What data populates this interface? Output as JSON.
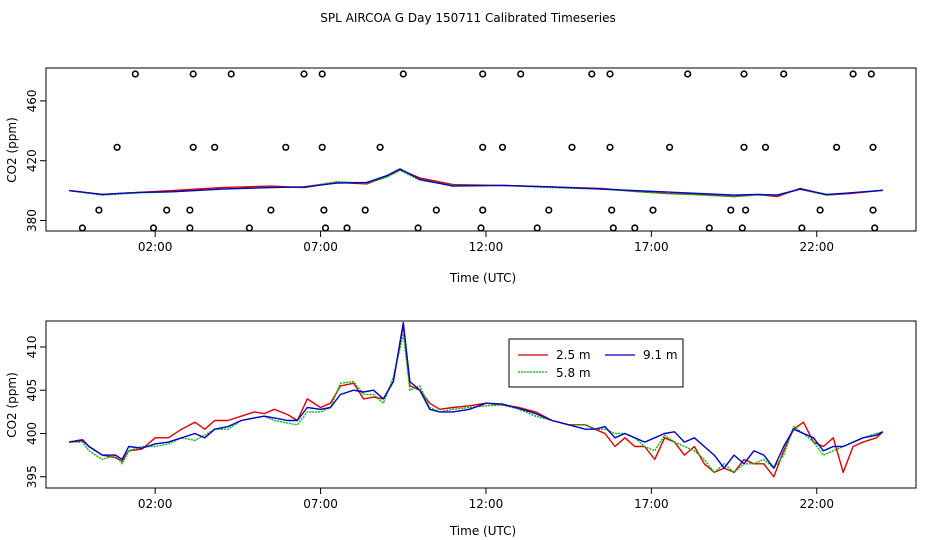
{
  "title": "SPL AIRCOA G  Day 150711  Calibrated Timeseries",
  "colors": {
    "s25": "#dd0000",
    "s58": "#00bb00",
    "s91": "#0000cc",
    "axis": "#000000"
  },
  "chart_data": [
    {
      "type": "line+scatter",
      "title": "SPL AIRCOA G  Day 150711  Calibrated Timeseries",
      "xlabel": "Time (UTC)",
      "ylabel": "CO2 (ppm)",
      "x_units": "hours (UTC)",
      "xlim": [
        -1.3,
        25.0
      ],
      "ylim": [
        373,
        482
      ],
      "x_ticks": [
        {
          "value": 2,
          "label": "02:00"
        },
        {
          "value": 7,
          "label": "07:00"
        },
        {
          "value": 12,
          "label": "12:00"
        },
        {
          "value": 17,
          "label": "17:00"
        },
        {
          "value": 22,
          "label": "22:00"
        }
      ],
      "y_ticks": [
        {
          "value": 380,
          "label": "380"
        },
        {
          "value": 420,
          "label": "420"
        },
        {
          "value": 460,
          "label": "460"
        }
      ],
      "marker_rows": [
        {
          "y": 478,
          "x": [
            1.4,
            3.15,
            4.3,
            6.5,
            7.05,
            9.5,
            11.9,
            13.05,
            15.2,
            15.75,
            18.1,
            19.8,
            21.0,
            23.1,
            23.65
          ]
        },
        {
          "y": 429,
          "x": [
            0.85,
            3.15,
            3.8,
            5.95,
            7.05,
            8.8,
            11.9,
            12.5,
            14.6,
            15.75,
            17.55,
            19.8,
            20.45,
            22.6,
            23.7
          ]
        },
        {
          "y": 387,
          "x": [
            0.3,
            2.35,
            3.05,
            5.5,
            7.1,
            8.35,
            10.5,
            11.9,
            13.9,
            15.8,
            17.05,
            19.4,
            19.85,
            22.1,
            23.7
          ]
        },
        {
          "y": 375,
          "x": [
            -0.2,
            1.95,
            3.05,
            4.85,
            7.15,
            7.8,
            9.95,
            11.85,
            13.55,
            15.85,
            16.5,
            18.75,
            19.75,
            21.55,
            23.75
          ]
        }
      ],
      "series": [
        {
          "name": "2.5 m",
          "x": [
            -0.6,
            0.4,
            1.5,
            2.5,
            4.0,
            5.5,
            6.5,
            7.5,
            8.4,
            9.0,
            9.4,
            10.0,
            11.0,
            12.5,
            14.0,
            15.5,
            16.5,
            17.5,
            18.5,
            19.5,
            20.2,
            20.8,
            21.5,
            22.3,
            23.0,
            24.0
          ],
          "values": [
            400.0,
            397.5,
            398.8,
            400.0,
            402.0,
            403.0,
            402.0,
            405.5,
            404.5,
            409.5,
            414.0,
            408.5,
            404.0,
            403.5,
            402.5,
            401.5,
            399.5,
            398.0,
            397.5,
            396.0,
            397.5,
            396.0,
            401.5,
            397.0,
            398.0,
            400.2
          ]
        },
        {
          "name": "5.8 m",
          "x": [
            -0.6,
            0.4,
            1.5,
            2.5,
            4.0,
            5.5,
            6.5,
            7.5,
            8.4,
            9.0,
            9.4,
            10.0,
            11.0,
            12.5,
            14.0,
            15.5,
            16.5,
            17.5,
            18.5,
            19.5,
            20.2,
            20.8,
            21.5,
            22.3,
            23.0,
            24.0
          ],
          "values": [
            400.0,
            397.0,
            398.5,
            399.2,
            401.0,
            402.2,
            402.5,
            406.0,
            405.0,
            409.0,
            413.5,
            407.0,
            403.5,
            403.5,
            402.0,
            401.0,
            399.5,
            398.0,
            397.0,
            396.0,
            397.0,
            397.0,
            400.8,
            397.0,
            398.5,
            400.2
          ]
        },
        {
          "name": "9.1 m",
          "x": [
            -0.6,
            0.4,
            1.5,
            2.5,
            4.0,
            5.5,
            6.5,
            7.5,
            8.4,
            9.0,
            9.4,
            10.0,
            11.0,
            12.5,
            14.0,
            15.5,
            16.5,
            17.5,
            18.5,
            19.5,
            20.2,
            20.8,
            21.5,
            22.3,
            23.0,
            24.0
          ],
          "values": [
            400.0,
            397.5,
            398.8,
            399.2,
            401.0,
            402.0,
            402.5,
            405.0,
            405.5,
            410.0,
            414.5,
            407.5,
            403.0,
            403.5,
            402.5,
            401.0,
            400.0,
            399.0,
            398.0,
            397.0,
            397.5,
            397.0,
            401.0,
            397.5,
            398.5,
            400.2
          ]
        }
      ]
    },
    {
      "type": "line",
      "xlabel": "Time (UTC)",
      "ylabel": "CO2 (ppm)",
      "x_units": "hours (UTC)",
      "xlim": [
        -1.3,
        25.0
      ],
      "ylim": [
        393.7,
        413.0
      ],
      "legend_position": "top-center",
      "x_ticks": [
        {
          "value": 2,
          "label": "02:00"
        },
        {
          "value": 7,
          "label": "07:00"
        },
        {
          "value": 12,
          "label": "12:00"
        },
        {
          "value": 17,
          "label": "17:00"
        },
        {
          "value": 22,
          "label": "22:00"
        }
      ],
      "y_ticks": [
        {
          "value": 395,
          "label": "395"
        },
        {
          "value": 400,
          "label": "400"
        },
        {
          "value": 405,
          "label": "405"
        },
        {
          "value": 410,
          "label": "410"
        }
      ],
      "series": [
        {
          "name": "2.5 m",
          "x": [
            -0.6,
            -0.2,
            0.0,
            0.4,
            0.8,
            1.0,
            1.2,
            1.6,
            2.0,
            2.4,
            2.8,
            3.2,
            3.5,
            3.8,
            4.2,
            4.6,
            5.0,
            5.3,
            5.6,
            6.0,
            6.3,
            6.6,
            7.0,
            7.3,
            7.6,
            8.0,
            8.3,
            8.6,
            8.9,
            9.2,
            9.5,
            9.7,
            10.0,
            10.3,
            10.6,
            11.0,
            11.5,
            12.0,
            12.5,
            13.0,
            13.5,
            14.0,
            14.5,
            15.0,
            15.3,
            15.6,
            15.9,
            16.2,
            16.5,
            16.8,
            17.1,
            17.4,
            17.7,
            18.0,
            18.3,
            18.6,
            18.9,
            19.2,
            19.5,
            19.8,
            20.1,
            20.4,
            20.7,
            21.0,
            21.3,
            21.6,
            21.9,
            22.2,
            22.5,
            22.8,
            23.1,
            23.4,
            23.8,
            24.0
          ],
          "values": [
            399.0,
            399.3,
            398.5,
            397.5,
            397.2,
            396.8,
            398.0,
            398.2,
            399.5,
            399.5,
            400.5,
            401.3,
            400.5,
            401.5,
            401.5,
            402.0,
            402.5,
            402.3,
            402.8,
            402.2,
            401.5,
            404.0,
            403.0,
            403.5,
            405.5,
            405.8,
            404.0,
            404.2,
            404.0,
            406.0,
            412.5,
            405.5,
            405.0,
            403.5,
            402.8,
            403.0,
            403.2,
            403.5,
            403.3,
            403.0,
            402.5,
            401.5,
            401.0,
            401.0,
            400.5,
            400.0,
            398.5,
            399.5,
            398.5,
            398.5,
            397.0,
            399.5,
            399.0,
            397.5,
            398.5,
            396.5,
            395.5,
            396.0,
            395.5,
            397.0,
            396.5,
            396.5,
            395.0,
            398.0,
            400.5,
            401.3,
            399.0,
            398.5,
            399.5,
            395.5,
            398.5,
            399.0,
            399.5,
            400.2
          ]
        },
        {
          "name": "5.8 m",
          "x": [
            -0.6,
            -0.2,
            0.0,
            0.4,
            0.8,
            1.0,
            1.2,
            1.6,
            2.0,
            2.4,
            2.8,
            3.2,
            3.5,
            3.8,
            4.2,
            4.6,
            5.0,
            5.3,
            5.6,
            6.0,
            6.3,
            6.6,
            7.0,
            7.3,
            7.6,
            8.0,
            8.3,
            8.6,
            8.9,
            9.2,
            9.5,
            9.7,
            10.0,
            10.3,
            10.6,
            11.0,
            11.5,
            12.0,
            12.5,
            13.0,
            13.5,
            14.0,
            14.5,
            15.0,
            15.3,
            15.6,
            15.9,
            16.2,
            16.5,
            16.8,
            17.1,
            17.4,
            17.7,
            18.0,
            18.3,
            18.6,
            18.9,
            19.2,
            19.5,
            19.8,
            20.1,
            20.4,
            20.7,
            21.0,
            21.3,
            21.6,
            21.9,
            22.2,
            22.5,
            22.8,
            23.1,
            23.4,
            23.8,
            24.0
          ],
          "values": [
            399.0,
            399.0,
            398.0,
            397.0,
            397.5,
            396.5,
            398.0,
            398.5,
            398.5,
            398.8,
            399.5,
            399.2,
            399.8,
            400.5,
            400.5,
            401.5,
            401.8,
            402.0,
            401.5,
            401.2,
            401.0,
            402.5,
            402.5,
            403.0,
            405.8,
            406.0,
            404.5,
            404.5,
            403.5,
            406.5,
            411.5,
            405.0,
            405.5,
            403.0,
            402.5,
            402.8,
            403.0,
            403.2,
            403.3,
            402.8,
            402.0,
            401.5,
            401.0,
            401.0,
            400.5,
            400.5,
            400.0,
            400.0,
            399.5,
            398.5,
            398.0,
            399.8,
            399.0,
            398.5,
            398.0,
            397.0,
            395.5,
            396.5,
            395.5,
            396.5,
            396.5,
            397.0,
            396.0,
            397.5,
            400.8,
            400.0,
            399.0,
            397.5,
            398.0,
            398.5,
            399.0,
            399.5,
            400.0,
            400.2
          ]
        },
        {
          "name": "9.1 m",
          "x": [
            -0.6,
            -0.2,
            0.0,
            0.4,
            0.8,
            1.0,
            1.2,
            1.6,
            2.0,
            2.4,
            2.8,
            3.2,
            3.5,
            3.8,
            4.2,
            4.6,
            5.0,
            5.3,
            5.6,
            6.0,
            6.3,
            6.6,
            7.0,
            7.3,
            7.6,
            8.0,
            8.3,
            8.6,
            8.9,
            9.2,
            9.5,
            9.7,
            10.0,
            10.3,
            10.6,
            11.0,
            11.5,
            12.0,
            12.5,
            13.0,
            13.5,
            14.0,
            14.5,
            15.0,
            15.3,
            15.6,
            15.9,
            16.2,
            16.5,
            16.8,
            17.1,
            17.4,
            17.7,
            18.0,
            18.3,
            18.6,
            18.9,
            19.2,
            19.5,
            19.8,
            20.1,
            20.4,
            20.7,
            21.0,
            21.3,
            21.6,
            21.9,
            22.2,
            22.5,
            22.8,
            23.1,
            23.4,
            23.8,
            24.0
          ],
          "values": [
            399.0,
            399.2,
            398.5,
            397.5,
            397.5,
            397.0,
            398.5,
            398.3,
            398.8,
            399.0,
            399.5,
            400.0,
            399.5,
            400.5,
            400.8,
            401.5,
            401.8,
            402.0,
            401.8,
            401.5,
            401.5,
            403.0,
            402.8,
            403.0,
            404.5,
            405.0,
            404.8,
            405.0,
            404.0,
            406.0,
            412.8,
            406.0,
            405.0,
            402.8,
            402.5,
            402.5,
            402.8,
            403.5,
            403.4,
            402.9,
            402.3,
            401.5,
            401.0,
            400.5,
            400.5,
            400.8,
            399.5,
            400.0,
            399.5,
            399.0,
            399.5,
            400.0,
            400.2,
            399.0,
            399.5,
            398.5,
            397.5,
            396.0,
            397.5,
            396.5,
            398.0,
            397.5,
            396.0,
            398.5,
            400.5,
            400.0,
            399.5,
            398.0,
            398.5,
            398.5,
            399.0,
            399.5,
            399.8,
            400.2
          ]
        }
      ]
    }
  ]
}
